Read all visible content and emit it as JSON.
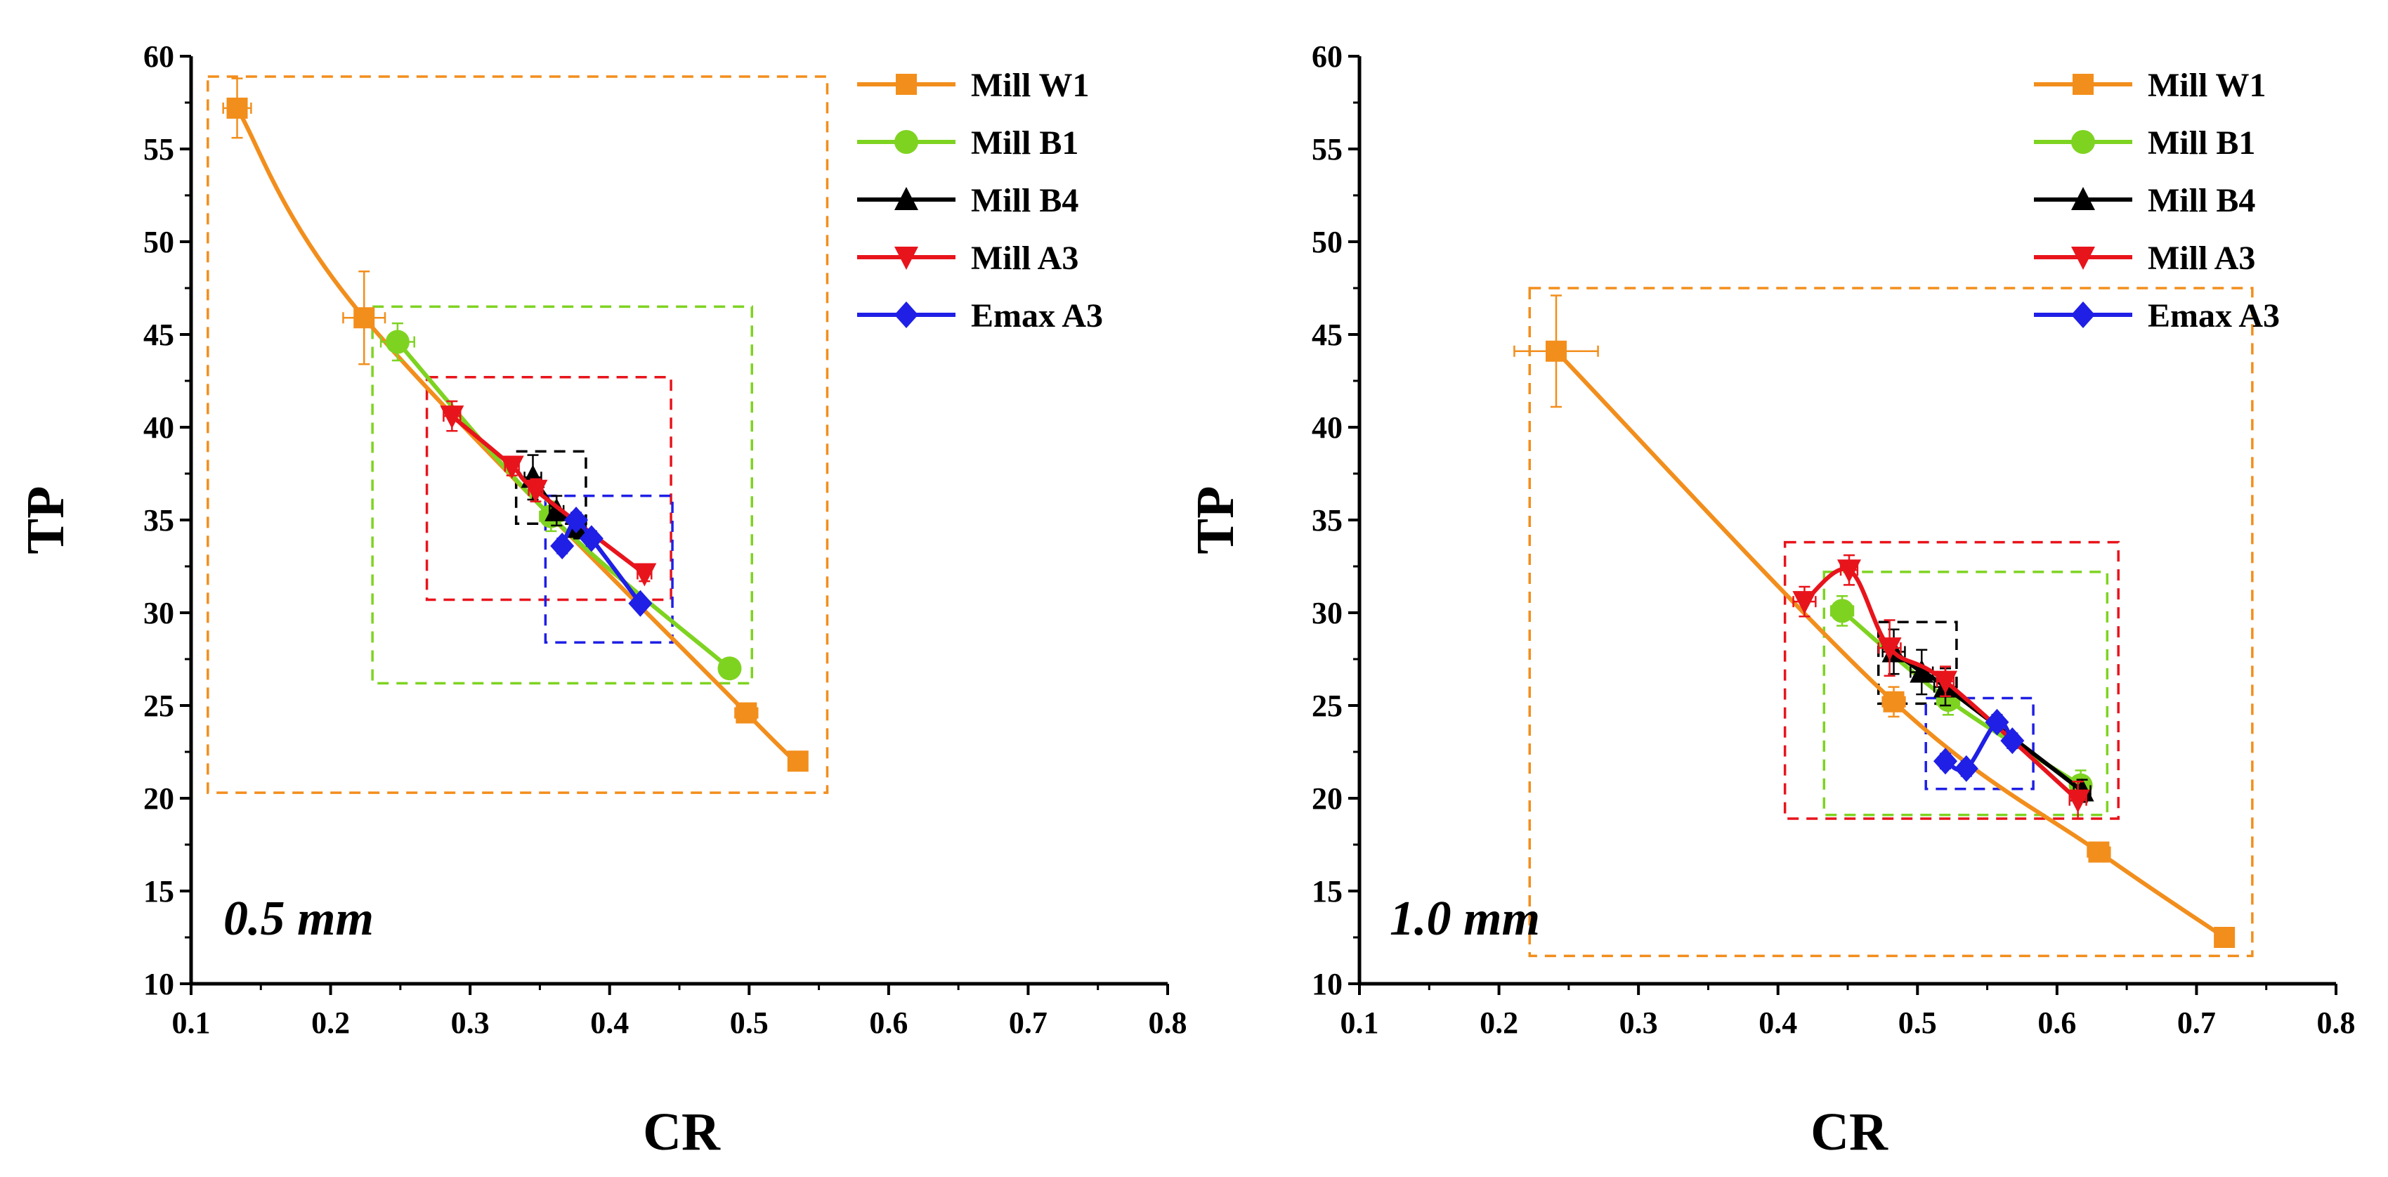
{
  "colors": {
    "Mill W1": "#f28e1c",
    "Mill B1": "#7ed321",
    "Mill B4": "#000000",
    "Mill A3": "#e8141c",
    "Emax A3": "#1f1fe6"
  },
  "chart_data": [
    {
      "type": "line",
      "annotation": "0.5 mm",
      "xlabel": "CR",
      "ylabel": "TP",
      "xlim": [
        0.1,
        0.8
      ],
      "ylim": [
        10,
        60
      ],
      "xticks": [
        "0.1",
        "0.2",
        "0.3",
        "0.4",
        "0.5",
        "0.6",
        "0.7",
        "0.8"
      ],
      "yticks": [
        "10",
        "15",
        "20",
        "25",
        "30",
        "35",
        "40",
        "45",
        "50",
        "55",
        "60"
      ],
      "legend": "top-right",
      "series": [
        {
          "name": "Mill W1",
          "marker": "square",
          "x": [
            0.133,
            0.224,
            0.498,
            0.535
          ],
          "y": [
            57.2,
            45.9,
            24.6,
            22.0
          ],
          "xerr": [
            0.01,
            0.015,
            0.008,
            0.006
          ],
          "yerr": [
            1.6,
            2.5,
            0.5,
            0.3
          ],
          "box": {
            "x": [
              0.112,
              0.556
            ],
            "y": [
              20.3,
              58.9
            ]
          }
        },
        {
          "name": "Mill B1",
          "marker": "circle",
          "x": [
            0.248,
            0.358,
            0.486
          ],
          "y": [
            44.6,
            35.2,
            27.0
          ],
          "xerr": [
            0.012,
            0.008,
            0.006
          ],
          "yerr": [
            1.0,
            0.8,
            0.4
          ],
          "box": {
            "x": [
              0.23,
              0.502
            ],
            "y": [
              26.2,
              46.5
            ]
          }
        },
        {
          "name": "Mill B4",
          "marker": "triangle-up",
          "x": [
            0.345,
            0.362,
            0.378
          ],
          "y": [
            37.3,
            35.5,
            34.6
          ],
          "xerr": [
            0.006,
            0.005,
            0.005
          ],
          "yerr": [
            1.2,
            0.8,
            0.6
          ],
          "box": {
            "x": [
              0.333,
              0.383
            ],
            "y": [
              34.8,
              38.7
            ]
          }
        },
        {
          "name": "Mill A3",
          "marker": "triangle-down",
          "x": [
            0.287,
            0.33,
            0.347,
            0.425
          ],
          "y": [
            40.6,
            37.9,
            36.6,
            32.1
          ],
          "xerr": [
            0.006,
            0.005,
            0.005,
            0.005
          ],
          "yerr": [
            0.8,
            0.5,
            0.6,
            0.4
          ],
          "box": {
            "x": [
              0.269,
              0.444
            ],
            "y": [
              30.7,
              42.7
            ]
          }
        },
        {
          "name": "Emax A3",
          "marker": "diamond",
          "x": [
            0.366,
            0.376,
            0.387,
            0.422
          ],
          "y": [
            33.6,
            35.0,
            34.0,
            30.5
          ],
          "xerr": [
            0.004,
            0.004,
            0.004,
            0.004
          ],
          "yerr": [
            0.4,
            0.4,
            0.4,
            0.3
          ],
          "box": {
            "x": [
              0.354,
              0.445
            ],
            "y": [
              28.4,
              36.3
            ]
          }
        }
      ]
    },
    {
      "type": "line",
      "annotation": "1.0 mm",
      "xlabel": "CR",
      "ylabel": "TP",
      "xlim": [
        0.1,
        0.8
      ],
      "ylim": [
        10,
        60
      ],
      "xticks": [
        "0.1",
        "0.2",
        "0.3",
        "0.4",
        "0.5",
        "0.6",
        "0.7",
        "0.8"
      ],
      "yticks": [
        "10",
        "15",
        "20",
        "25",
        "30",
        "35",
        "40",
        "45",
        "50",
        "55",
        "60"
      ],
      "legend": "top-right",
      "series": [
        {
          "name": "Mill W1",
          "marker": "square",
          "x": [
            0.241,
            0.483,
            0.63,
            0.72
          ],
          "y": [
            44.1,
            25.2,
            17.1,
            12.5
          ],
          "xerr": [
            0.03,
            0.008,
            0.008,
            0.005
          ],
          "yerr": [
            3.0,
            0.8,
            0.4,
            0.3
          ],
          "box": {
            "x": [
              0.222,
              0.74
            ],
            "y": [
              11.5,
              47.5
            ]
          }
        },
        {
          "name": "Mill B1",
          "marker": "circle",
          "x": [
            0.446,
            0.522,
            0.617
          ],
          "y": [
            30.1,
            25.3,
            20.7
          ],
          "xerr": [
            0.008,
            0.008,
            0.006
          ],
          "yerr": [
            0.8,
            0.8,
            0.8
          ],
          "box": {
            "x": [
              0.433,
              0.636
            ],
            "y": [
              19.1,
              32.2
            ]
          }
        },
        {
          "name": "Mill B4",
          "marker": "triangle-up",
          "x": [
            0.483,
            0.503,
            0.52,
            0.618
          ],
          "y": [
            27.9,
            26.8,
            26.0,
            20.4
          ],
          "xerr": [
            0.008,
            0.008,
            0.008,
            0.006
          ],
          "yerr": [
            1.2,
            1.2,
            1.0,
            0.6
          ],
          "box": {
            "x": [
              0.472,
              0.528
            ],
            "y": [
              25.1,
              29.5
            ]
          }
        },
        {
          "name": "Mill A3",
          "marker": "triangle-down",
          "x": [
            0.419,
            0.451,
            0.48,
            0.52,
            0.615
          ],
          "y": [
            30.6,
            32.3,
            28.1,
            26.3,
            19.9
          ],
          "xerr": [
            0.008,
            0.006,
            0.008,
            0.006,
            0.006
          ],
          "yerr": [
            0.8,
            0.8,
            1.5,
            0.8,
            1.0
          ],
          "box": {
            "x": [
              0.405,
              0.644
            ],
            "y": [
              18.9,
              33.8
            ]
          }
        },
        {
          "name": "Emax A3",
          "marker": "diamond",
          "x": [
            0.52,
            0.535,
            0.557,
            0.568
          ],
          "y": [
            22.0,
            21.6,
            24.1,
            23.1
          ],
          "xerr": [
            0.004,
            0.004,
            0.004,
            0.004
          ],
          "yerr": [
            0.4,
            0.4,
            0.4,
            0.4
          ],
          "box": {
            "x": [
              0.506,
              0.583
            ],
            "y": [
              20.5,
              25.4
            ]
          }
        }
      ]
    }
  ]
}
